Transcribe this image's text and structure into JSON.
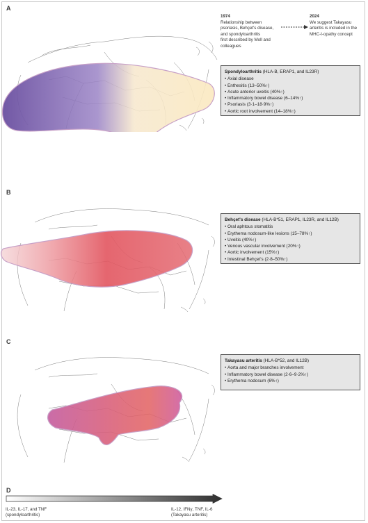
{
  "panels": {
    "a": "A",
    "b": "B",
    "c": "C",
    "d": "D"
  },
  "timeline": {
    "left": {
      "year": "1974",
      "text": [
        "Relationship between",
        "psoriasis, Behçet's disease,",
        "and spondyloarthritis",
        "first described by Moll and",
        "colleagues"
      ]
    },
    "right": {
      "year": "2024",
      "text": [
        "We suggest Takayasu",
        "arteritis is included in the",
        "MHC-I-opathy concept"
      ]
    }
  },
  "spondylo": {
    "name": "Spondyloarthritis",
    "genes": "(HLA-B, ERAP1, and IL23R)",
    "items": [
      "Axial disease",
      "Enthesitis (13–50%↑)",
      "Acute anterior uveitis (40%↑)",
      "Inflammatory bowel disease (6–14%↑)",
      "Psoriasis (3·1–18·9%↑)",
      "Aortic root involvement (14–18%↑)"
    ]
  },
  "behcet": {
    "name": "Behçet's disease",
    "genes": "(HLA-B*51, ERAP1, IL23R, and IL12B)",
    "items": [
      "Oral aphtous stomatitis",
      "Erythema nodosum-like lesions (15–78%↑)",
      "Uveitis (40%↑)",
      "Venous vascular involvement (20%↑)",
      "Aortic involvement (15%↑)",
      "Intestinal Behçet's (2·8–50%↑)"
    ]
  },
  "takayasu": {
    "name": "Takayasu arteritis",
    "genes": "(HLA-B*52, and IL12B)",
    "items": [
      "Aorta and major branches involvement",
      "Inflammatory bowel disease (2·6–9·2%↑)",
      "Erythema nodosum (6%↑)"
    ]
  },
  "cytokine_axis": {
    "left": [
      "IL-23, IL-17, and TNF",
      "(spondyloarthritis)"
    ],
    "right": [
      "IL-12, IFNγ, TNF, IL-6",
      "(Takayasu arteritis)"
    ]
  },
  "colors": {
    "spondylo_purple": "#7b5fae",
    "spondylo_cream": "#fbe9c0",
    "behcet_red": "#e2555f",
    "takayasu_pink": "#c45c9e",
    "takayasu_red": "#e26060",
    "outline": "#c7a0c7",
    "box_fill": "#e6e6e6",
    "arrow_dark": "#3a3a3a"
  }
}
